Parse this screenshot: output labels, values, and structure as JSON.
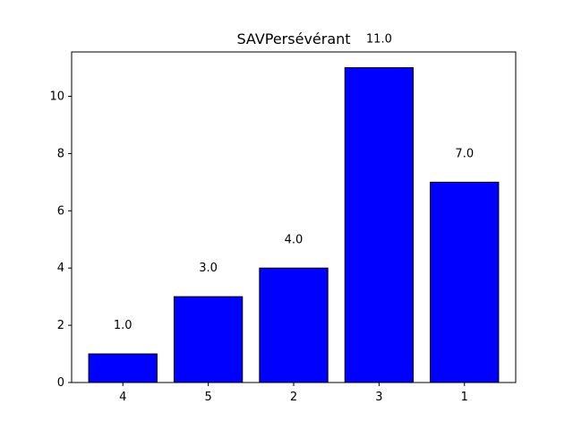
{
  "chart_data": {
    "type": "bar",
    "title": "SAVPersévérant",
    "xlabel": "",
    "ylabel": "",
    "categories": [
      "4",
      "5",
      "2",
      "3",
      "1"
    ],
    "values": [
      1.0,
      3.0,
      4.0,
      11.0,
      7.0
    ],
    "value_labels": [
      "1.0",
      "3.0",
      "4.0",
      "11.0",
      "7.0"
    ],
    "ylim": [
      0,
      11.55
    ],
    "yticks": [
      0,
      2,
      4,
      6,
      8,
      10
    ],
    "grid": false,
    "bar_color": "#0000ff",
    "bar_edge_color": "#000000"
  }
}
